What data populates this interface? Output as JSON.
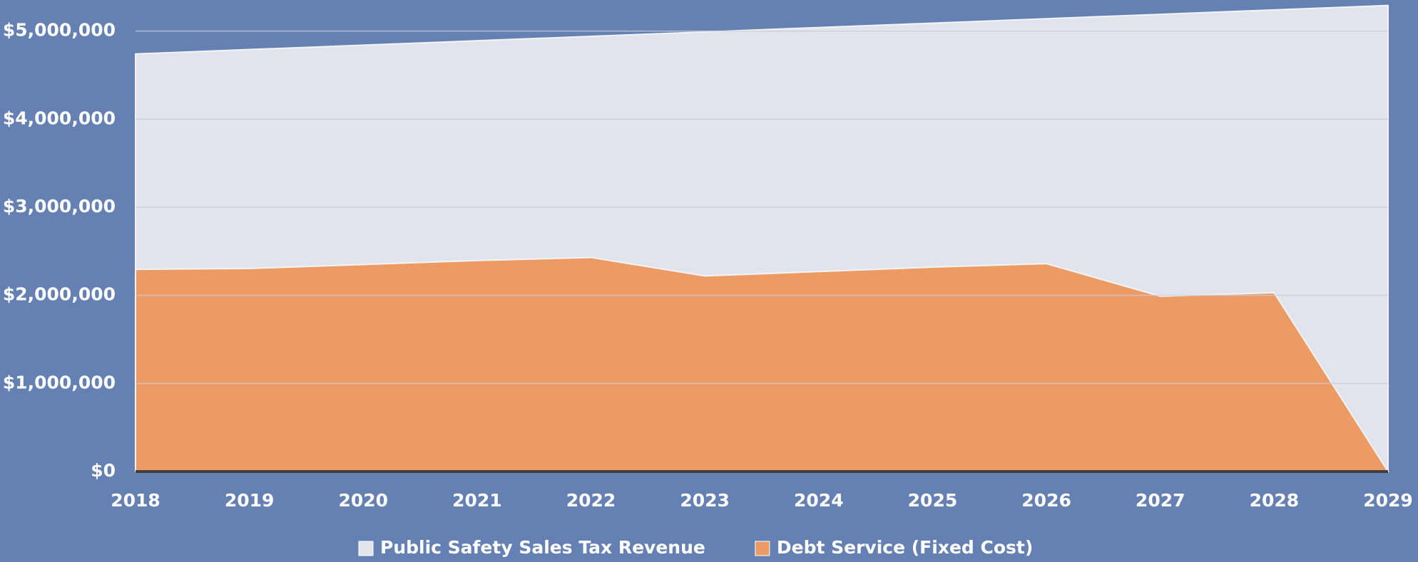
{
  "chart_data": {
    "type": "area",
    "categories": [
      "2018",
      "2019",
      "2020",
      "2021",
      "2022",
      "2023",
      "2024",
      "2025",
      "2026",
      "2027",
      "2028",
      "2029"
    ],
    "series": [
      {
        "name": "Public Safety Sales Tax Revenue",
        "color": "#e1e4ec",
        "values": [
          4740000,
          4790000,
          4840000,
          4890000,
          4940000,
          4990000,
          5040000,
          5090000,
          5140000,
          5190000,
          5240000,
          5290000
        ]
      },
      {
        "name": "Debt Service (Fixed Cost)",
        "color": "#ed9b64",
        "values": [
          2295000,
          2305000,
          2350000,
          2395000,
          2430000,
          2220000,
          2270000,
          2320000,
          2360000,
          1990000,
          2030000,
          0
        ]
      }
    ],
    "ylim": [
      0,
      5320000
    ],
    "yticks": [
      {
        "value": 0,
        "label": "$0"
      },
      {
        "value": 1000000,
        "label": "$1,000,000"
      },
      {
        "value": 2000000,
        "label": "$2,000,000"
      },
      {
        "value": 3000000,
        "label": "$3,000,000"
      },
      {
        "value": 4000000,
        "label": "$4,000,000"
      },
      {
        "value": 5000000,
        "label": "$5,000,000"
      }
    ],
    "grid": true,
    "legend": "bottom"
  }
}
